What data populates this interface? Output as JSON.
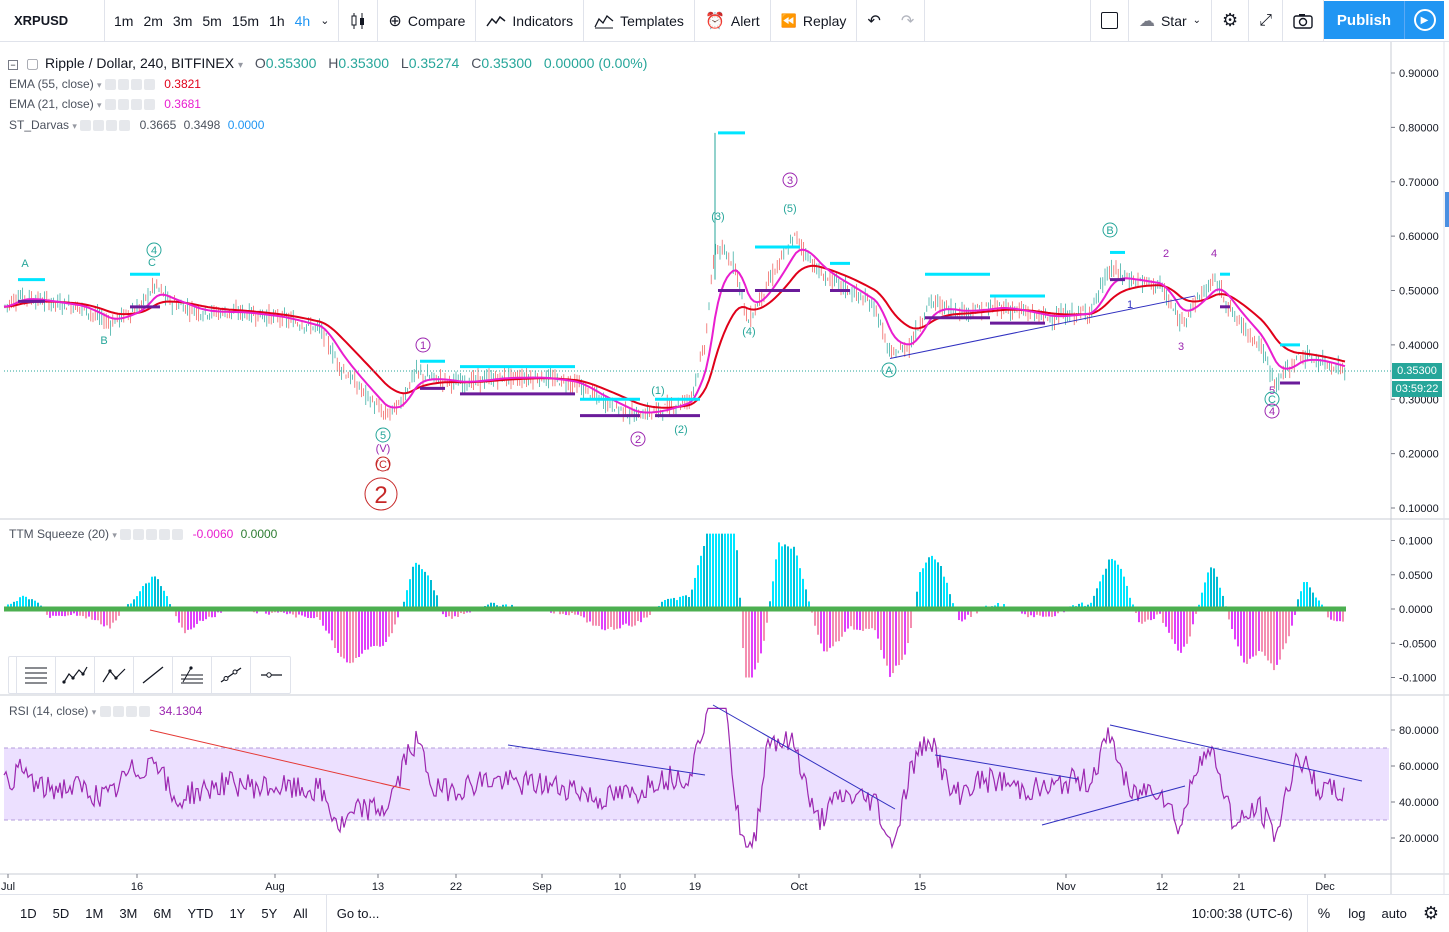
{
  "toolbar": {
    "symbol": "XRPUSD",
    "intervals": [
      "1m",
      "2m",
      "3m",
      "5m",
      "15m",
      "1h",
      "4h"
    ],
    "active_interval": "4h",
    "compare": "Compare",
    "indicators": "Indicators",
    "templates": "Templates",
    "alert": "Alert",
    "replay": "Replay",
    "star": "Star",
    "publish": "Publish"
  },
  "main_pane": {
    "title": "Ripple / Dollar, 240, BITFINEX",
    "ohlc": {
      "o_label": "O",
      "o": "0.35300",
      "h_label": "H",
      "h": "0.35300",
      "l_label": "L",
      "l": "0.35274",
      "c_label": "C",
      "c": "0.35300",
      "change": "0.00000 (0.00%)"
    },
    "indicators": [
      {
        "name": "EMA (55, close)",
        "value": "0.3821",
        "color": "#e0001a"
      },
      {
        "name": "EMA (21, close)",
        "value": "0.3681",
        "color": "#e91ecf"
      },
      {
        "name": "ST_Darvas",
        "value1": "0.3665",
        "value2": "0.3498",
        "value3": "0.0000",
        "color3": "#2196f3"
      }
    ],
    "price_axis": [
      "0.90000",
      "0.80000",
      "0.70000",
      "0.60000",
      "0.50000",
      "0.40000",
      "0.30000",
      "0.20000",
      "0.10000"
    ],
    "last_price": "0.35300",
    "countdown": "03:59:22",
    "wave_labels": [
      "A",
      "B",
      "C",
      "4",
      "1",
      "5",
      "(V)",
      "(C)",
      "2",
      "(1)",
      "2",
      "(2)",
      "(3)",
      "3",
      "(5)",
      "(4)",
      "A",
      "B",
      "2",
      "4",
      "3",
      "1",
      "5",
      "C",
      "4"
    ]
  },
  "ttm_pane": {
    "name": "TTM Squeeze (20)",
    "value1": "-0.0060",
    "value2": "0.0000",
    "axis": [
      "0.1000",
      "0.0500",
      "0.0000",
      "-0.0500",
      "-0.1000"
    ]
  },
  "rsi_pane": {
    "name": "RSI (14, close)",
    "value": "34.1304",
    "axis": [
      "80.0000",
      "60.0000",
      "40.0000",
      "20.0000"
    ]
  },
  "time_axis": [
    "Jul",
    "16",
    "Aug",
    "13",
    "22",
    "Sep",
    "10",
    "19",
    "Oct",
    "15",
    "Nov",
    "12",
    "21",
    "Dec"
  ],
  "bottom": {
    "ranges": [
      "1D",
      "5D",
      "1M",
      "3M",
      "6M",
      "YTD",
      "1Y",
      "5Y",
      "All"
    ],
    "goto": "Go to...",
    "clock": "10:00:38 (UTC-6)",
    "pct": "%",
    "log": "log",
    "auto": "auto"
  },
  "colors": {
    "accent": "#2196f3",
    "ema55": "#e0001a",
    "ema21": "#e91ecf",
    "darvas_box": "#00e5ff",
    "darvas_low": "#6a1b9a",
    "rsi_band": "#e8dcff",
    "rsi_line": "#9c27b0",
    "up": "#26a69a"
  }
}
